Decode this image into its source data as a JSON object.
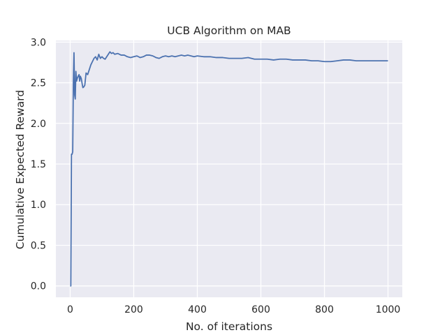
{
  "chart_data": {
    "type": "line",
    "title": "UCB Algorithm on MAB",
    "xlabel": "No. of iterations",
    "ylabel": "Cumulative Expected Reward",
    "xlim": [
      -45,
      1045
    ],
    "ylim": [
      -0.14,
      3.02
    ],
    "xticks": [
      0,
      200,
      400,
      600,
      800,
      1000
    ],
    "xtick_labels": [
      "0",
      "200",
      "400",
      "600",
      "800",
      "1000"
    ],
    "yticks": [
      0.0,
      0.5,
      1.0,
      1.5,
      2.0,
      2.5,
      3.0
    ],
    "ytick_labels": [
      "0.0",
      "0.5",
      "1.0",
      "1.5",
      "2.0",
      "2.5",
      "3.0"
    ],
    "grid": true,
    "background": "#eaeaf2",
    "gridline_color": "#ffffff",
    "series": [
      {
        "color": "#4c72b0",
        "x": [
          0,
          2,
          4,
          6,
          8,
          10,
          12,
          14,
          16,
          18,
          20,
          22,
          25,
          28,
          30,
          32,
          35,
          38,
          40,
          43,
          46,
          50,
          55,
          60,
          65,
          70,
          75,
          80,
          85,
          90,
          95,
          100,
          105,
          110,
          115,
          120,
          125,
          130,
          135,
          140,
          150,
          160,
          170,
          180,
          190,
          200,
          210,
          220,
          230,
          240,
          250,
          260,
          270,
          280,
          290,
          300,
          310,
          320,
          330,
          340,
          350,
          360,
          370,
          380,
          390,
          400,
          420,
          440,
          460,
          480,
          500,
          520,
          540,
          560,
          580,
          600,
          620,
          640,
          660,
          680,
          700,
          720,
          740,
          760,
          780,
          800,
          820,
          840,
          860,
          880,
          900,
          920,
          940,
          960,
          980,
          1000
        ],
        "y": [
          0.0,
          0.0,
          1.62,
          1.62,
          1.65,
          2.5,
          2.87,
          2.35,
          2.3,
          2.64,
          2.52,
          2.55,
          2.58,
          2.6,
          2.52,
          2.58,
          2.55,
          2.48,
          2.44,
          2.45,
          2.47,
          2.62,
          2.6,
          2.66,
          2.72,
          2.76,
          2.8,
          2.82,
          2.78,
          2.85,
          2.8,
          2.82,
          2.8,
          2.79,
          2.82,
          2.85,
          2.88,
          2.86,
          2.87,
          2.85,
          2.86,
          2.84,
          2.84,
          2.82,
          2.81,
          2.82,
          2.83,
          2.81,
          2.82,
          2.84,
          2.84,
          2.83,
          2.81,
          2.8,
          2.82,
          2.83,
          2.82,
          2.83,
          2.82,
          2.83,
          2.84,
          2.83,
          2.84,
          2.83,
          2.82,
          2.83,
          2.82,
          2.82,
          2.81,
          2.81,
          2.8,
          2.8,
          2.8,
          2.81,
          2.79,
          2.79,
          2.79,
          2.78,
          2.79,
          2.79,
          2.78,
          2.78,
          2.78,
          2.77,
          2.77,
          2.76,
          2.76,
          2.77,
          2.78,
          2.78,
          2.77,
          2.77,
          2.77,
          2.77,
          2.77,
          2.77
        ]
      }
    ]
  }
}
